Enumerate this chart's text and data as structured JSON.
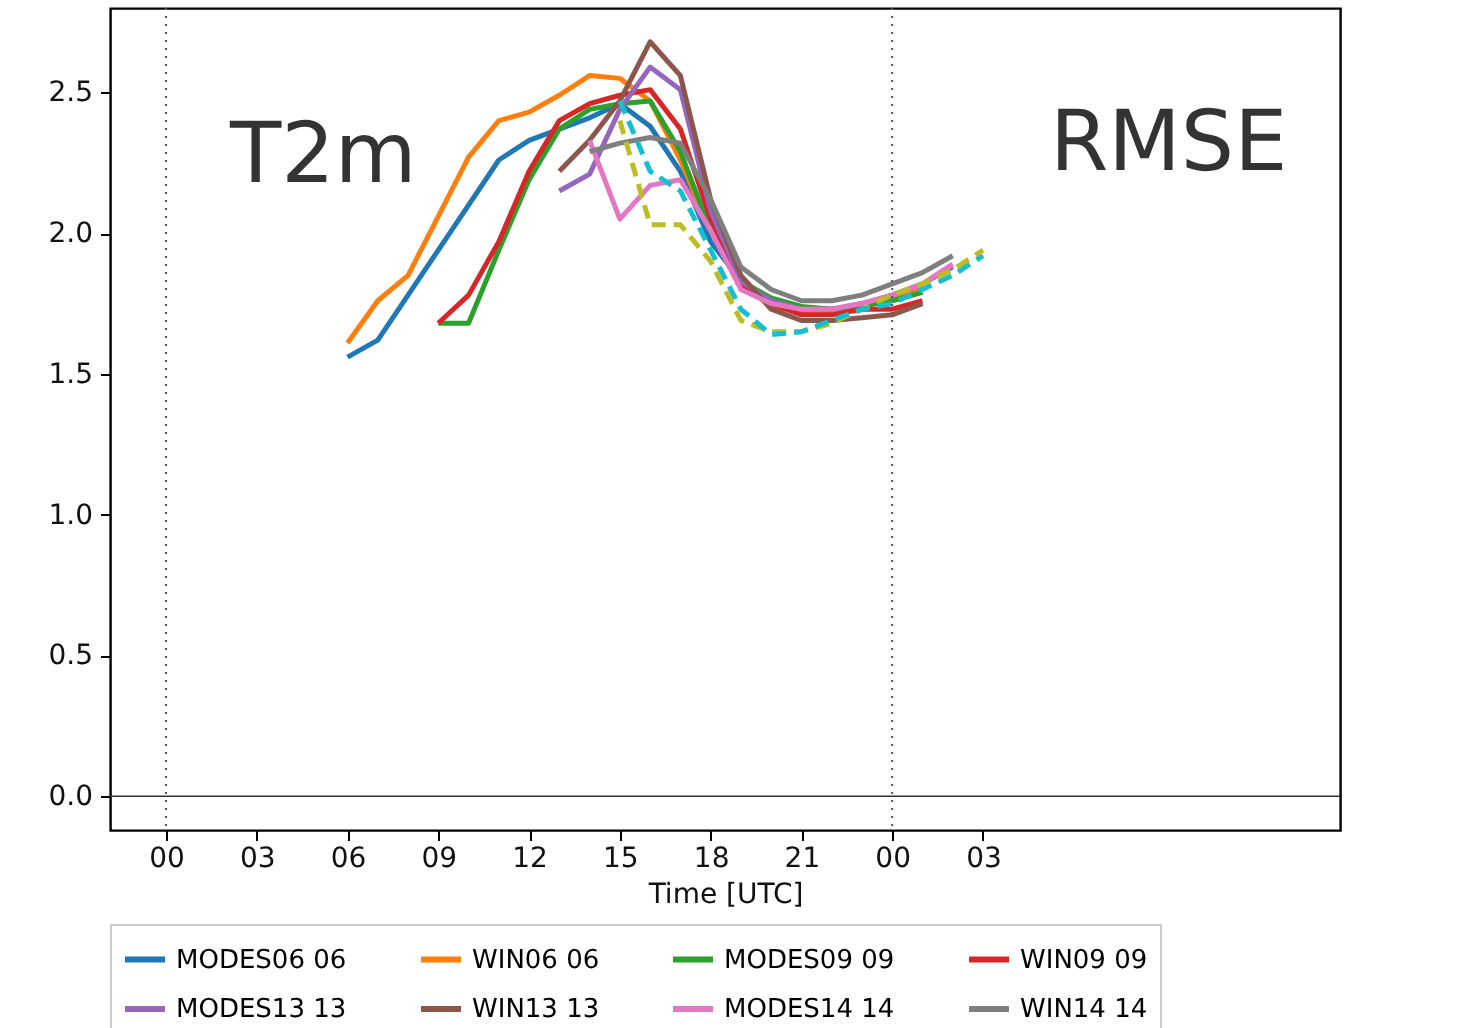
{
  "chart_data": {
    "type": "line",
    "xlabel": "Time [UTC]",
    "xlim": [
      -1.85,
      38.8
    ],
    "ylim": [
      -0.12,
      2.8
    ],
    "xticks": [
      {
        "value": 0,
        "label": "00"
      },
      {
        "value": 3,
        "label": "03"
      },
      {
        "value": 6,
        "label": "06"
      },
      {
        "value": 9,
        "label": "09"
      },
      {
        "value": 12,
        "label": "12"
      },
      {
        "value": 15,
        "label": "15"
      },
      {
        "value": 18,
        "label": "18"
      },
      {
        "value": 21,
        "label": "21"
      },
      {
        "value": 24,
        "label": "00"
      },
      {
        "value": 27,
        "label": "03"
      }
    ],
    "yticks": [
      {
        "value": 0,
        "label": "0.0"
      },
      0.5,
      {
        "value": 1,
        "label": "1.0"
      },
      1.5,
      {
        "value": 2,
        "label": "2.0"
      },
      2.5
    ],
    "grid": false,
    "legend": "bottom",
    "annotations": [
      "T2m",
      "RMSE"
    ],
    "ref_lines": [
      {
        "axis": "x",
        "value": 0,
        "color": "#555555",
        "line_style": "dotted"
      },
      {
        "axis": "x",
        "value": 24,
        "color": "#555555",
        "line_style": "dotted"
      },
      {
        "axis": "y",
        "value": 0,
        "color": "#333333",
        "line_style": "solid"
      }
    ],
    "series": [
      {
        "name": "MODES06 06",
        "color": "#1f77b4",
        "x": [
          6,
          7,
          8,
          9,
          10,
          11,
          12,
          13,
          14,
          15,
          16,
          17,
          18,
          19,
          20,
          21,
          22,
          23,
          24,
          25
        ],
        "values": [
          1.56,
          1.62,
          1.78,
          1.94,
          2.1,
          2.26,
          2.33,
          2.37,
          2.41,
          2.46,
          2.38,
          2.22,
          1.97,
          1.83,
          1.76,
          1.73,
          1.73,
          1.74,
          1.78,
          1.81
        ]
      },
      {
        "name": "WIN06 06",
        "color": "#ff7f0e",
        "x": [
          6,
          7,
          8,
          9,
          10,
          11,
          12,
          13,
          14,
          15,
          16,
          17,
          18,
          19,
          20,
          21,
          22,
          23,
          24,
          25
        ],
        "values": [
          1.61,
          1.76,
          1.85,
          2.06,
          2.27,
          2.4,
          2.43,
          2.49,
          2.56,
          2.55,
          2.47,
          2.26,
          2.01,
          1.82,
          1.74,
          1.72,
          1.72,
          1.74,
          1.77,
          1.8
        ]
      },
      {
        "name": "MODES09 09",
        "color": "#2ca02c",
        "x": [
          9,
          10,
          11,
          12,
          13,
          14,
          15,
          16,
          17,
          18,
          19,
          20,
          21,
          22,
          23,
          24,
          25
        ],
        "values": [
          1.68,
          1.68,
          1.94,
          2.19,
          2.37,
          2.44,
          2.46,
          2.47,
          2.29,
          2.01,
          1.83,
          1.77,
          1.74,
          1.73,
          1.74,
          1.76,
          1.79
        ]
      },
      {
        "name": "WIN09 09",
        "color": "#d62728",
        "x": [
          9,
          10,
          11,
          12,
          13,
          14,
          15,
          16,
          17,
          18,
          19,
          20,
          21,
          22,
          23,
          24,
          25
        ],
        "values": [
          1.68,
          1.78,
          1.97,
          2.22,
          2.4,
          2.46,
          2.49,
          2.51,
          2.37,
          2.05,
          1.82,
          1.75,
          1.71,
          1.71,
          1.73,
          1.73,
          1.76
        ]
      },
      {
        "name": "MODES13 13",
        "color": "#9467bd",
        "x": [
          13,
          14,
          15,
          16,
          17,
          18,
          19,
          20,
          21,
          22,
          23,
          24,
          25,
          26
        ],
        "values": [
          2.15,
          2.21,
          2.44,
          2.59,
          2.51,
          2.08,
          1.83,
          1.76,
          1.73,
          1.73,
          1.75,
          1.78,
          1.82,
          1.88
        ]
      },
      {
        "name": "WIN13 13",
        "color": "#8c564b",
        "x": [
          13,
          14,
          15,
          16,
          17,
          18,
          19,
          20,
          21,
          22,
          23,
          24,
          25
        ],
        "values": [
          2.22,
          2.33,
          2.47,
          2.68,
          2.56,
          2.12,
          1.85,
          1.73,
          1.69,
          1.69,
          1.7,
          1.71,
          1.75
        ]
      },
      {
        "name": "MODES14 14",
        "color": "#e377c2",
        "x": [
          14,
          15,
          16,
          17,
          18,
          19,
          20,
          21,
          22,
          23,
          24,
          25,
          26
        ],
        "values": [
          2.33,
          2.05,
          2.17,
          2.19,
          2.01,
          1.8,
          1.75,
          1.73,
          1.73,
          1.75,
          1.78,
          1.82,
          1.89
        ]
      },
      {
        "name": "WIN14 14",
        "color": "#7f7f7f",
        "x": [
          14,
          15,
          16,
          17,
          18,
          19,
          20,
          21,
          22,
          23,
          24,
          25,
          26
        ],
        "values": [
          2.29,
          2.32,
          2.34,
          2.32,
          2.12,
          1.88,
          1.8,
          1.76,
          1.76,
          1.78,
          1.82,
          1.86,
          1.92
        ]
      },
      {
        "color": "#bcbd22",
        "line_style": "dashed",
        "x": [
          15,
          16,
          17,
          18,
          19,
          20,
          21,
          22,
          23,
          24,
          25,
          26,
          27
        ],
        "values": [
          2.4,
          2.03,
          2.03,
          1.9,
          1.69,
          1.65,
          1.65,
          1.68,
          1.73,
          1.78,
          1.82,
          1.87,
          1.94
        ]
      },
      {
        "color": "#17becf",
        "line_style": "dashed",
        "x": [
          15,
          16,
          17,
          18,
          19,
          20,
          21,
          22,
          23,
          24,
          25,
          26,
          27
        ],
        "values": [
          2.47,
          2.22,
          2.15,
          1.94,
          1.73,
          1.64,
          1.65,
          1.69,
          1.73,
          1.75,
          1.8,
          1.85,
          1.92
        ]
      }
    ]
  }
}
